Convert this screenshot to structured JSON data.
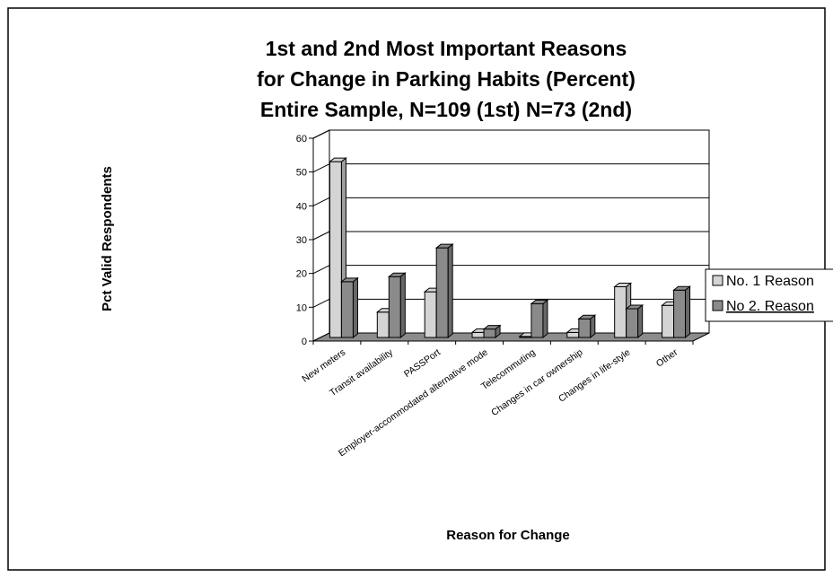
{
  "chart_data": {
    "type": "bar",
    "title_lines": [
      "1st and 2nd Most Important Reasons",
      "for Change in Parking Habits (Percent)",
      "Entire Sample, N=109 (1st) N=73 (2nd)"
    ],
    "xlabel": "Reason for Change",
    "ylabel": "Pct Valid Respondents",
    "categories": [
      "New meters",
      "Transit availability",
      "PASSPort",
      "Employer-accommodated alternative mode",
      "Telecommuting",
      "Changes in car ownership",
      "Changes in life-style",
      "Other"
    ],
    "series": [
      {
        "name": "No. 1 Reason",
        "color": "#d4d4d4",
        "values": [
          52,
          7.5,
          13.5,
          1.5,
          0.3,
          1.5,
          15,
          9.5
        ]
      },
      {
        "name": "No 2. Reason",
        "color": "#8a8a8a",
        "values": [
          16.5,
          18,
          26.5,
          2.5,
          10,
          5.5,
          8.5,
          14
        ]
      }
    ],
    "ylim": [
      0,
      60
    ],
    "yticks": [
      "0",
      "10",
      "20",
      "30",
      "40",
      "50",
      "60"
    ],
    "grid": true,
    "legend_position": "right"
  }
}
